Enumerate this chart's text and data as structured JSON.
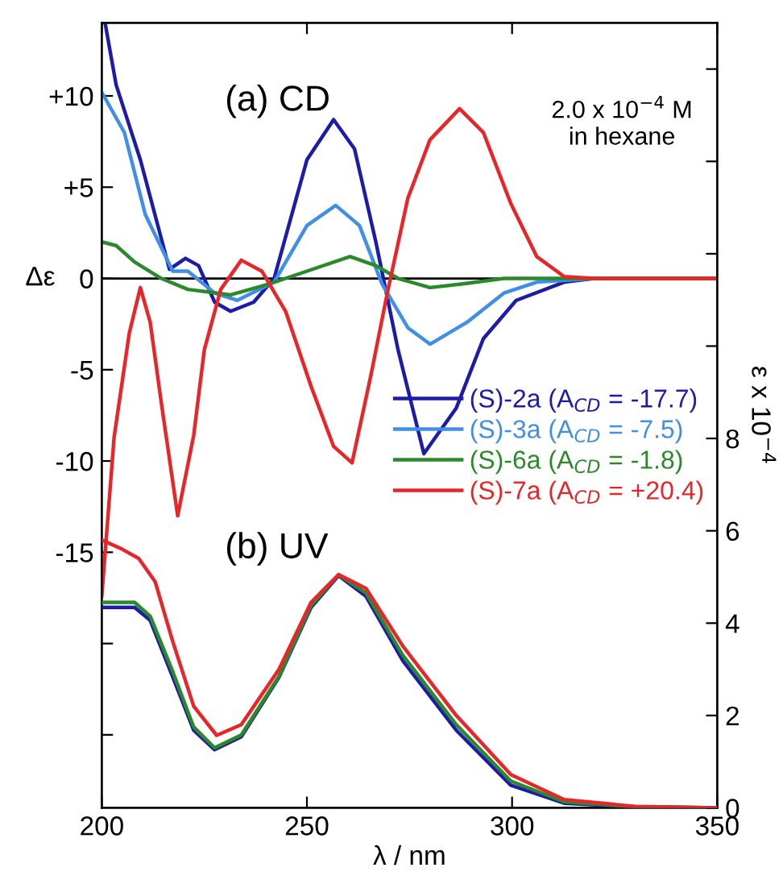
{
  "chart_data": {
    "type": "line",
    "xlabel": "λ / nm",
    "ylabel": "Δε",
    "y2label": "ε x 10$^{−4}$",
    "annotations": [
      "(a) CD",
      "2.0 x 10$^{−4}$ M\nin hexane",
      "(b) UV"
    ],
    "xlim": [
      200,
      350
    ],
    "xticks": [
      200,
      250,
      300,
      350
    ],
    "ylim": [
      -29,
      14
    ],
    "yticks": [
      {
        "value": 10,
        "label": "+10"
      },
      {
        "value": 5,
        "label": "+5"
      },
      0,
      -5,
      -10,
      -15,
      {
        "value": -20,
        "label": null
      },
      {
        "value": -25,
        "label": null
      }
    ],
    "y2lim": [
      0,
      17
    ],
    "y2ticks": [
      0,
      2,
      4,
      6,
      8,
      {
        "value": 10,
        "label": null
      },
      {
        "value": 12,
        "label": null
      },
      {
        "value": 14,
        "label": null
      },
      {
        "value": 16,
        "label": null
      }
    ],
    "ref_lines": [
      {
        "axis": "y",
        "value": 0,
        "color": "#000000"
      }
    ],
    "grid": false,
    "legend": "right",
    "marker": "none",
    "line_style": "solid",
    "series": [
      {
        "name": "(S)-2a (A$_{CD}$ = -17.7)",
        "color": "#1c1ca8",
        "x": [
          200.8,
          203.5,
          209.4,
          216.5,
          220.4,
          223.6,
          227.5,
          231.4,
          237,
          242,
          250,
          256.5,
          261.6,
          266.8,
          272.2,
          278.5,
          286.4,
          293,
          301,
          312.7,
          320,
          350
        ],
        "values": [
          14,
          10.6,
          6.5,
          0.5,
          1.1,
          0.7,
          -1.3,
          -1.8,
          -1.3,
          0,
          6.5,
          8.7,
          7.1,
          2.0,
          -3.9,
          -9.6,
          -7.1,
          -3.3,
          -1.2,
          -0.2,
          0,
          0
        ]
      },
      {
        "name": "(S)-3a (A$_{CD}$ = -7.5)",
        "color": "#3f8fe8",
        "x": [
          200,
          205.5,
          210.6,
          217.3,
          221,
          227.5,
          233,
          242,
          250,
          257,
          262.8,
          268.3,
          274.6,
          280,
          289,
          298,
          306,
          320,
          350
        ],
        "values": [
          10.2,
          8.0,
          3.5,
          0.4,
          0.4,
          -0.8,
          -1.2,
          -0.2,
          2.9,
          4.0,
          2.9,
          -0.3,
          -2.7,
          -3.6,
          -2.4,
          -0.8,
          -0.2,
          0,
          0
        ]
      },
      {
        "name": "(S)-6a (A$_{CD}$ = -1.8)",
        "color": "#2a8a2a",
        "x": [
          200,
          203.5,
          208,
          214.5,
          221,
          231.4,
          240.8,
          248.7,
          260.5,
          266.8,
          272.2,
          280,
          288,
          298,
          350
        ],
        "values": [
          2.0,
          1.8,
          0.9,
          0,
          -0.6,
          -0.9,
          -0.3,
          0.3,
          1.2,
          0.7,
          0,
          -0.5,
          -0.3,
          0,
          0
        ]
      },
      {
        "name": "(S)-7a (A$_{CD}$ = +20.4)",
        "color": "#e8262a",
        "x": [
          200,
          203,
          206.7,
          209.4,
          211.8,
          214.5,
          218.5,
          222.4,
          225,
          229,
          234,
          239,
          244.8,
          251,
          256.5,
          261,
          265.6,
          269.5,
          274.6,
          280,
          287.2,
          293,
          299.7,
          306,
          312.7,
          320,
          350
        ],
        "values": [
          -17.4,
          -8.7,
          -3.0,
          -0.5,
          -2.4,
          -6.8,
          -13.0,
          -8.6,
          -3.9,
          -0.6,
          1.0,
          0.4,
          -1.8,
          -5.9,
          -9.2,
          -10.1,
          -5.3,
          -0.9,
          4.4,
          7.6,
          9.3,
          8.0,
          4.1,
          1.2,
          0.1,
          0,
          0
        ]
      },
      {
        "axis": "y2",
        "color": "#1c1ca8",
        "x": [
          200,
          208,
          211.8,
          217.3,
          222.4,
          227.5,
          234,
          243.2,
          251,
          257.7,
          264.4,
          273.4,
          286.4,
          299.7,
          312.7,
          330,
          350
        ],
        "values": [
          4.34,
          4.34,
          4.06,
          2.83,
          1.68,
          1.26,
          1.54,
          2.83,
          4.34,
          5.03,
          4.58,
          3.18,
          1.68,
          0.49,
          0.1,
          0.02,
          0
        ]
      },
      {
        "axis": "y2",
        "color": "#2a8a2a",
        "x": [
          200,
          208,
          211.8,
          217.3,
          222.4,
          227.5,
          234,
          243.2,
          251,
          257.7,
          264.4,
          273.4,
          286.4,
          299.7,
          312.7,
          330,
          350
        ],
        "values": [
          4.45,
          4.45,
          4.15,
          2.95,
          1.75,
          1.3,
          1.58,
          2.85,
          4.38,
          5.05,
          4.65,
          3.3,
          1.8,
          0.58,
          0.13,
          0.02,
          0
        ]
      },
      {
        "axis": "y2",
        "color": "#e8262a",
        "x": [
          200,
          205,
          209,
          213,
          217.3,
          222.4,
          228,
          234,
          243.2,
          251,
          257.7,
          264.4,
          273.4,
          286.4,
          299.7,
          312.7,
          330,
          350
        ],
        "values": [
          5.8,
          5.6,
          5.4,
          4.9,
          3.6,
          2.2,
          1.57,
          1.8,
          3.0,
          4.45,
          5.05,
          4.75,
          3.5,
          2.0,
          0.72,
          0.18,
          0.03,
          0
        ]
      }
    ]
  }
}
